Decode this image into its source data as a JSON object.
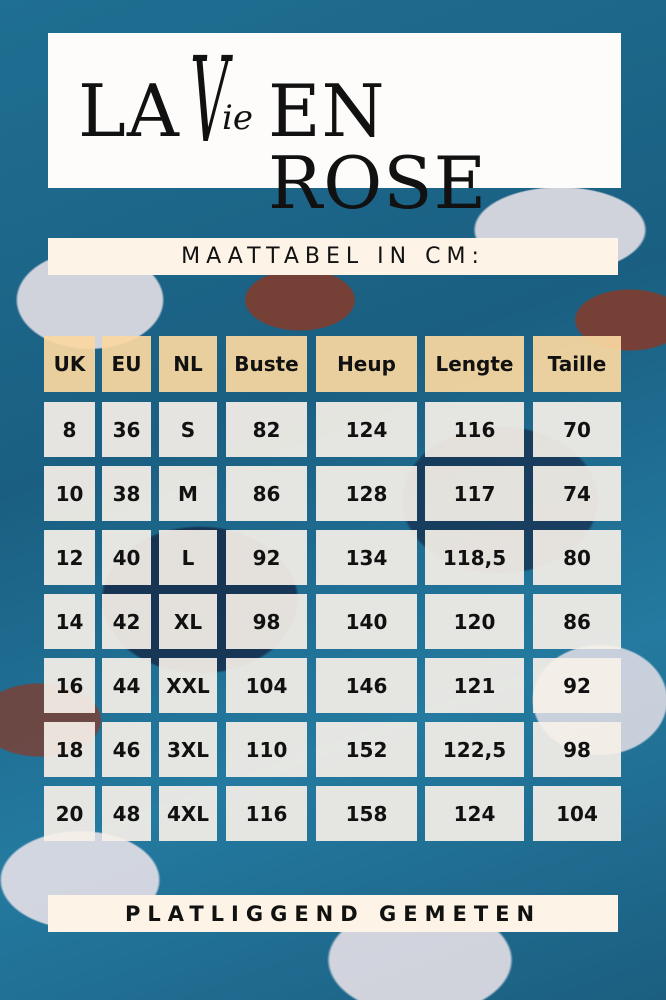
{
  "brand": {
    "logo_text": "LA Vie EN ROSE",
    "left": "LA",
    "script_v": "V",
    "script_ie": "ie",
    "right": "EN ROSE"
  },
  "subtitle": "MAATTABEL IN CM:",
  "table": {
    "headers": [
      "UK",
      "EU",
      "NL",
      "Buste",
      "Heup",
      "Lengte",
      "Taille"
    ],
    "rows": [
      [
        "8",
        "36",
        "S",
        "82",
        "124",
        "116",
        "70"
      ],
      [
        "10",
        "38",
        "M",
        "86",
        "128",
        "117",
        "74"
      ],
      [
        "12",
        "40",
        "L",
        "92",
        "134",
        "118,5",
        "80"
      ],
      [
        "14",
        "42",
        "XL",
        "98",
        "140",
        "120",
        "86"
      ],
      [
        "16",
        "44",
        "XXL",
        "104",
        "146",
        "121",
        "92"
      ],
      [
        "18",
        "46",
        "3XL",
        "110",
        "152",
        "122,5",
        "98"
      ],
      [
        "20",
        "48",
        "4XL",
        "116",
        "158",
        "124",
        "104"
      ]
    ]
  },
  "footer": "PLATLIGGEND GEMETEN",
  "colors": {
    "header_cell": "#fad7a0",
    "body_cell": "#f6f0e8",
    "banner": "#fdf3e6",
    "background": "#1f6f92"
  }
}
